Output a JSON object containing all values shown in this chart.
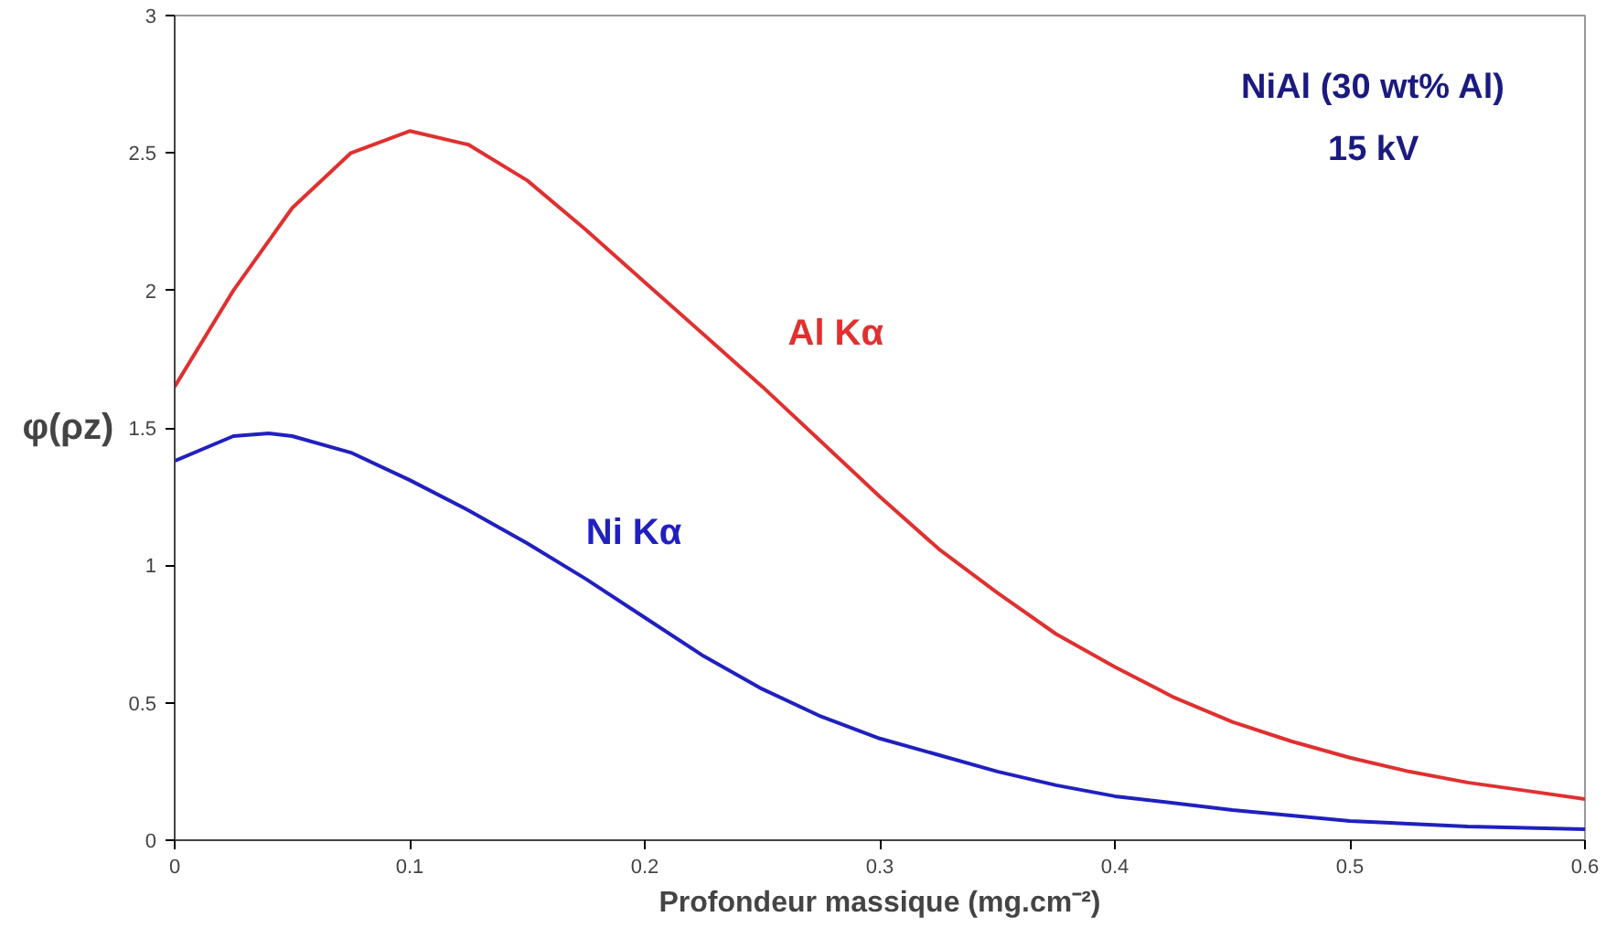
{
  "chart_data": {
    "type": "line",
    "xlabel": "Profondeur massique (mg.cm⁻²)",
    "ylabel": "φ(ρz)",
    "annotations": [
      "NiAl (30 wt% Al)",
      "15 kV"
    ],
    "xlim": [
      0,
      0.6
    ],
    "ylim": [
      0,
      3
    ],
    "xticks": [
      0,
      0.1,
      0.2,
      0.3,
      0.4,
      0.5,
      0.6
    ],
    "yticks": [
      0,
      0.5,
      1,
      1.5,
      2,
      2.5,
      3
    ],
    "grid": false,
    "series": [
      {
        "name": "Al Kα",
        "color": "#e03030",
        "x": [
          0,
          0.025,
          0.05,
          0.075,
          0.1,
          0.125,
          0.15,
          0.175,
          0.2,
          0.225,
          0.25,
          0.275,
          0.3,
          0.325,
          0.35,
          0.375,
          0.4,
          0.425,
          0.45,
          0.475,
          0.5,
          0.525,
          0.55,
          0.575,
          0.6
        ],
        "values": [
          1.65,
          2.0,
          2.3,
          2.5,
          2.58,
          2.53,
          2.4,
          2.22,
          2.03,
          1.84,
          1.65,
          1.45,
          1.25,
          1.06,
          0.9,
          0.75,
          0.63,
          0.52,
          0.43,
          0.36,
          0.3,
          0.25,
          0.21,
          0.18,
          0.15
        ]
      },
      {
        "name": "Ni Kα",
        "color": "#2020c0",
        "x": [
          0,
          0.025,
          0.04,
          0.05,
          0.075,
          0.1,
          0.125,
          0.15,
          0.175,
          0.2,
          0.225,
          0.25,
          0.275,
          0.3,
          0.325,
          0.35,
          0.375,
          0.4,
          0.45,
          0.5,
          0.55,
          0.6
        ],
        "values": [
          1.38,
          1.47,
          1.48,
          1.47,
          1.41,
          1.31,
          1.2,
          1.08,
          0.95,
          0.81,
          0.67,
          0.55,
          0.45,
          0.37,
          0.31,
          0.25,
          0.2,
          0.16,
          0.11,
          0.07,
          0.05,
          0.04
        ]
      }
    ]
  }
}
